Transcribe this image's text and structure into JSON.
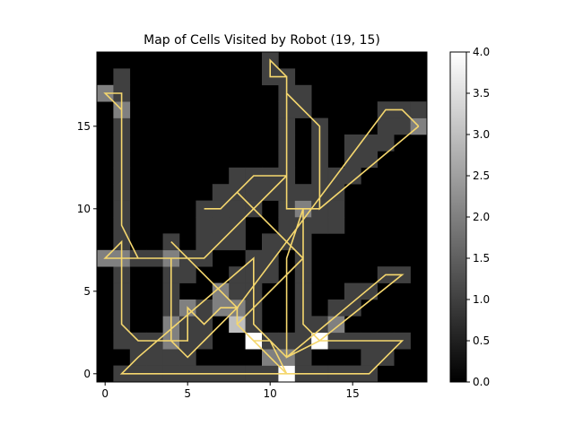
{
  "chart_data": {
    "type": "heatmap",
    "title": "Map of Cells Visited by Robot (19, 15)",
    "xlabel": "",
    "ylabel": "",
    "grid": false,
    "xlim": [
      -0.5,
      19.5
    ],
    "ylim": [
      -0.5,
      19.5
    ],
    "x_ticks": [
      0,
      5,
      10,
      15
    ],
    "y_ticks": [
      0,
      5,
      10,
      15
    ],
    "colorbar": {
      "vmin": 0.0,
      "vmax": 4.0,
      "ticks": [
        "0.0",
        "0.5",
        "1.0",
        "1.5",
        "2.0",
        "2.5",
        "3.0",
        "3.5",
        "4.0"
      ],
      "tick_values": [
        0,
        0.5,
        1,
        1.5,
        2,
        2.5,
        3,
        3.5,
        4
      ],
      "colormap": "gray"
    },
    "path_color": "#f5d76e",
    "cells": [
      [
        1,
        0,
        1
      ],
      [
        2,
        0,
        1
      ],
      [
        3,
        0,
        1
      ],
      [
        4,
        0,
        1
      ],
      [
        5,
        0,
        1
      ],
      [
        6,
        0,
        1
      ],
      [
        7,
        0,
        1
      ],
      [
        8,
        0,
        1
      ],
      [
        9,
        0,
        1
      ],
      [
        10,
        0,
        1
      ],
      [
        11,
        0,
        4
      ],
      [
        12,
        0,
        1
      ],
      [
        13,
        0,
        1
      ],
      [
        14,
        0,
        1
      ],
      [
        15,
        0,
        1
      ],
      [
        16,
        0,
        1
      ],
      [
        2,
        1,
        1
      ],
      [
        3,
        1,
        1
      ],
      [
        4,
        1,
        1
      ],
      [
        5,
        1,
        1
      ],
      [
        10,
        1,
        2
      ],
      [
        11,
        1,
        2
      ],
      [
        12,
        1,
        1
      ],
      [
        16,
        1,
        1
      ],
      [
        17,
        1,
        1
      ],
      [
        1,
        2,
        1
      ],
      [
        2,
        2,
        1
      ],
      [
        3,
        2,
        1
      ],
      [
        4,
        2,
        2
      ],
      [
        5,
        2,
        1
      ],
      [
        6,
        2,
        1
      ],
      [
        9,
        2,
        4
      ],
      [
        10,
        2,
        1
      ],
      [
        11,
        2,
        1
      ],
      [
        12,
        2,
        1
      ],
      [
        13,
        2,
        4
      ],
      [
        14,
        2,
        1
      ],
      [
        15,
        2,
        1
      ],
      [
        16,
        2,
        1
      ],
      [
        17,
        2,
        1
      ],
      [
        18,
        2,
        1
      ],
      [
        1,
        3,
        1
      ],
      [
        4,
        3,
        2
      ],
      [
        5,
        3,
        1
      ],
      [
        6,
        3,
        1
      ],
      [
        8,
        3,
        3
      ],
      [
        9,
        3,
        1
      ],
      [
        12,
        3,
        1
      ],
      [
        13,
        3,
        1
      ],
      [
        14,
        3,
        2
      ],
      [
        1,
        4,
        1
      ],
      [
        4,
        4,
        1
      ],
      [
        5,
        4,
        2
      ],
      [
        6,
        4,
        1
      ],
      [
        7,
        4,
        2
      ],
      [
        8,
        4,
        2
      ],
      [
        9,
        4,
        1
      ],
      [
        12,
        4,
        1
      ],
      [
        14,
        4,
        1
      ],
      [
        15,
        4,
        1
      ],
      [
        1,
        5,
        1
      ],
      [
        4,
        5,
        1
      ],
      [
        7,
        5,
        2
      ],
      [
        8,
        5,
        1
      ],
      [
        9,
        5,
        1
      ],
      [
        12,
        5,
        1
      ],
      [
        15,
        5,
        1
      ],
      [
        16,
        5,
        1
      ],
      [
        1,
        6,
        1
      ],
      [
        4,
        6,
        1
      ],
      [
        5,
        6,
        1
      ],
      [
        8,
        6,
        1
      ],
      [
        9,
        6,
        1
      ],
      [
        10,
        6,
        1
      ],
      [
        12,
        6,
        1
      ],
      [
        17,
        6,
        1
      ],
      [
        18,
        6,
        1
      ],
      [
        0,
        7,
        2
      ],
      [
        1,
        7,
        2
      ],
      [
        2,
        7,
        1
      ],
      [
        3,
        7,
        1
      ],
      [
        4,
        7,
        2
      ],
      [
        5,
        7,
        1
      ],
      [
        6,
        7,
        1
      ],
      [
        9,
        7,
        1
      ],
      [
        10,
        7,
        1
      ],
      [
        12,
        7,
        1
      ],
      [
        1,
        8,
        1
      ],
      [
        4,
        8,
        1
      ],
      [
        6,
        8,
        1
      ],
      [
        7,
        8,
        1
      ],
      [
        8,
        8,
        1
      ],
      [
        10,
        8,
        1
      ],
      [
        11,
        8,
        1
      ],
      [
        12,
        8,
        1
      ],
      [
        1,
        9,
        1
      ],
      [
        6,
        9,
        1
      ],
      [
        7,
        9,
        1
      ],
      [
        8,
        9,
        1
      ],
      [
        11,
        9,
        1
      ],
      [
        12,
        9,
        1
      ],
      [
        13,
        9,
        1
      ],
      [
        14,
        9,
        1
      ],
      [
        1,
        10,
        1
      ],
      [
        6,
        10,
        1
      ],
      [
        7,
        10,
        1
      ],
      [
        8,
        10,
        1
      ],
      [
        9,
        10,
        1
      ],
      [
        11,
        10,
        1
      ],
      [
        12,
        10,
        2
      ],
      [
        13,
        10,
        1
      ],
      [
        14,
        10,
        1
      ],
      [
        1,
        11,
        1
      ],
      [
        7,
        11,
        1
      ],
      [
        8,
        11,
        1
      ],
      [
        9,
        11,
        1
      ],
      [
        10,
        11,
        1
      ],
      [
        11,
        11,
        1
      ],
      [
        12,
        11,
        1
      ],
      [
        13,
        11,
        1
      ],
      [
        14,
        11,
        1
      ],
      [
        1,
        12,
        1
      ],
      [
        8,
        12,
        1
      ],
      [
        9,
        12,
        1
      ],
      [
        10,
        12,
        1
      ],
      [
        11,
        12,
        1
      ],
      [
        13,
        12,
        1
      ],
      [
        14,
        12,
        1
      ],
      [
        15,
        12,
        1
      ],
      [
        1,
        13,
        1
      ],
      [
        11,
        13,
        1
      ],
      [
        13,
        13,
        1
      ],
      [
        15,
        13,
        1
      ],
      [
        16,
        13,
        1
      ],
      [
        1,
        14,
        1
      ],
      [
        11,
        14,
        1
      ],
      [
        13,
        14,
        1
      ],
      [
        15,
        14,
        1
      ],
      [
        16,
        14,
        1
      ],
      [
        17,
        14,
        1
      ],
      [
        1,
        15,
        1
      ],
      [
        11,
        15,
        1
      ],
      [
        13,
        15,
        1
      ],
      [
        17,
        15,
        1
      ],
      [
        18,
        15,
        1
      ],
      [
        19,
        15,
        2
      ],
      [
        1,
        16,
        2
      ],
      [
        11,
        16,
        1
      ],
      [
        12,
        16,
        1
      ],
      [
        17,
        16,
        1
      ],
      [
        18,
        16,
        1
      ],
      [
        19,
        16,
        1
      ],
      [
        0,
        17,
        2
      ],
      [
        1,
        17,
        1
      ],
      [
        11,
        17,
        1
      ],
      [
        12,
        17,
        1
      ],
      [
        1,
        18,
        1
      ],
      [
        10,
        18,
        1
      ],
      [
        11,
        18,
        1
      ],
      [
        10,
        19,
        1
      ]
    ],
    "path": [
      [
        19,
        15
      ],
      [
        18,
        16
      ],
      [
        17,
        16
      ],
      [
        8,
        4
      ],
      [
        6,
        2
      ],
      [
        5,
        1
      ],
      [
        4,
        2
      ],
      [
        4,
        7
      ],
      [
        0,
        7
      ],
      [
        1,
        8
      ],
      [
        1,
        3
      ],
      [
        2,
        2
      ],
      [
        5,
        2
      ],
      [
        5,
        4
      ],
      [
        6,
        3
      ],
      [
        7,
        4
      ],
      [
        8,
        4
      ],
      [
        4,
        8
      ],
      [
        8,
        4
      ],
      [
        8,
        3
      ],
      [
        9,
        2
      ],
      [
        10,
        1
      ],
      [
        11,
        0
      ],
      [
        10,
        2
      ],
      [
        9,
        2
      ],
      [
        8,
        3
      ],
      [
        12,
        7
      ],
      [
        12,
        10
      ],
      [
        13,
        10
      ],
      [
        12,
        10
      ],
      [
        11,
        10
      ],
      [
        11,
        12
      ],
      [
        10,
        12
      ],
      [
        9,
        12
      ],
      [
        8,
        11
      ],
      [
        7,
        10
      ],
      [
        6,
        10
      ],
      [
        7,
        10
      ],
      [
        8,
        11
      ],
      [
        12,
        7
      ],
      [
        12,
        3
      ],
      [
        13,
        2
      ],
      [
        18,
        2
      ],
      [
        16,
        0
      ],
      [
        10,
        0
      ],
      [
        1,
        0
      ],
      [
        2,
        1
      ],
      [
        9,
        7
      ],
      [
        9,
        3
      ],
      [
        10,
        2
      ],
      [
        11,
        1
      ],
      [
        17,
        6
      ],
      [
        18,
        6
      ],
      [
        13,
        2
      ],
      [
        11,
        1
      ],
      [
        11,
        7
      ],
      [
        12,
        10
      ],
      [
        13,
        10
      ],
      [
        19,
        15
      ],
      [
        13,
        10
      ],
      [
        13,
        15
      ],
      [
        12,
        16
      ],
      [
        11,
        17
      ],
      [
        11,
        18
      ],
      [
        10,
        18
      ],
      [
        10,
        19
      ],
      [
        11,
        18
      ],
      [
        11,
        12
      ],
      [
        6,
        7
      ],
      [
        2,
        7
      ],
      [
        1,
        9
      ],
      [
        1,
        17
      ],
      [
        0,
        17
      ],
      [
        1,
        16
      ],
      [
        1,
        15
      ]
    ]
  }
}
